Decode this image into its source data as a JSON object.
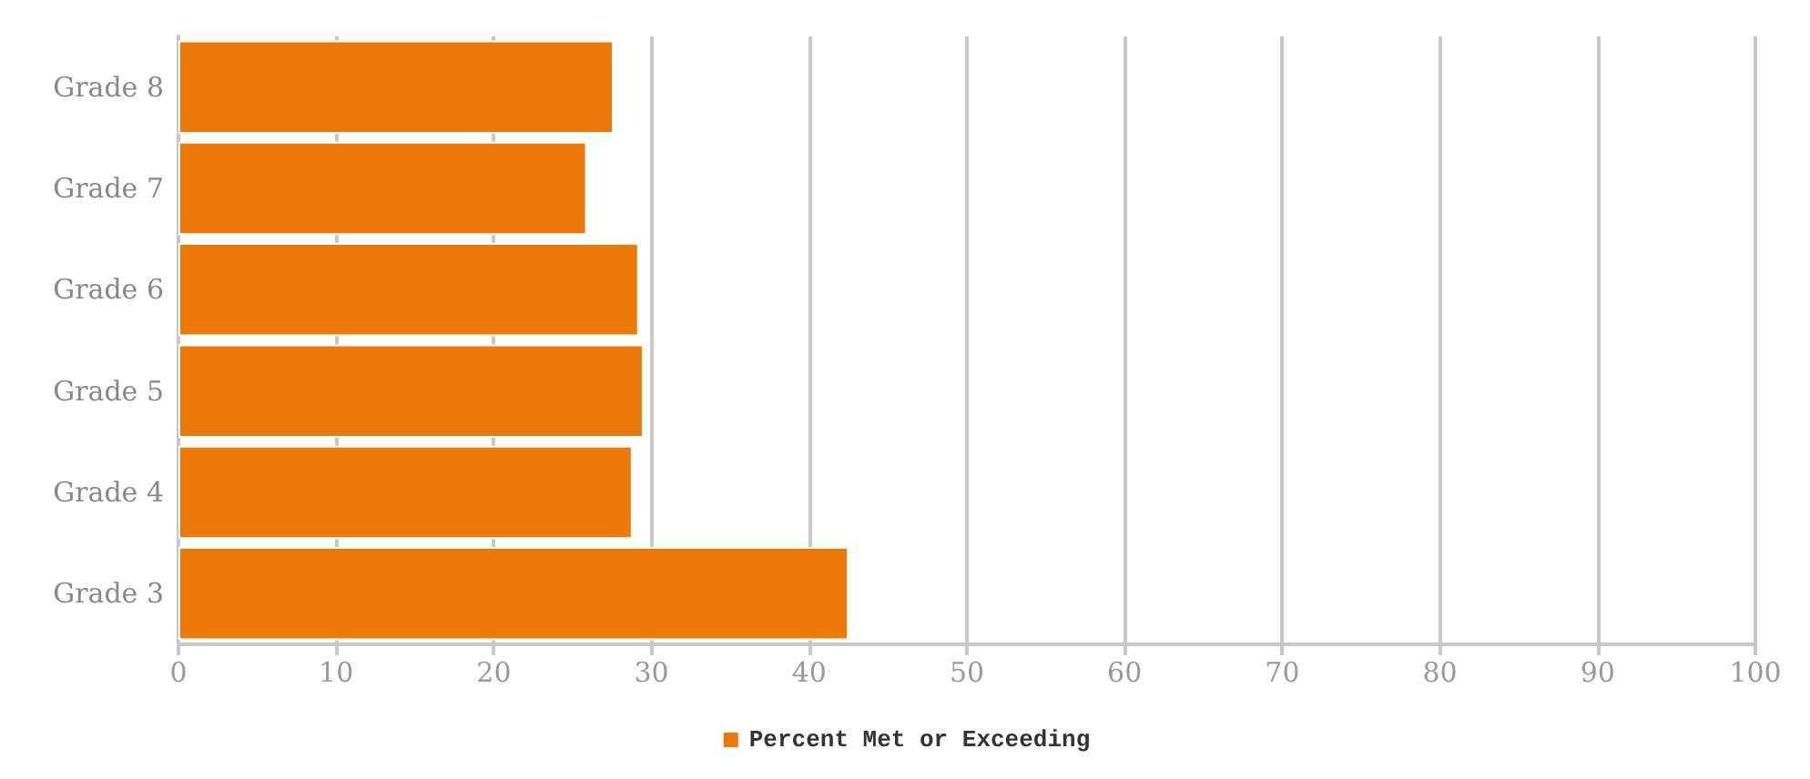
{
  "chart_data": {
    "type": "bar",
    "orientation": "horizontal",
    "categories": [
      "Grade 8",
      "Grade 7",
      "Grade 6",
      "Grade 5",
      "Grade 4",
      "Grade 3"
    ],
    "series": [
      {
        "name": "Percent Met or Exceeding",
        "color": "#ec7a08",
        "values": [
          27.6,
          25.9,
          29.2,
          29.5,
          28.8,
          42.5
        ]
      }
    ],
    "xlim": [
      0,
      100
    ],
    "xticks": [
      0,
      10,
      20,
      30,
      40,
      50,
      60,
      70,
      80,
      90,
      100
    ],
    "grid": "x",
    "legend": "bottom"
  }
}
